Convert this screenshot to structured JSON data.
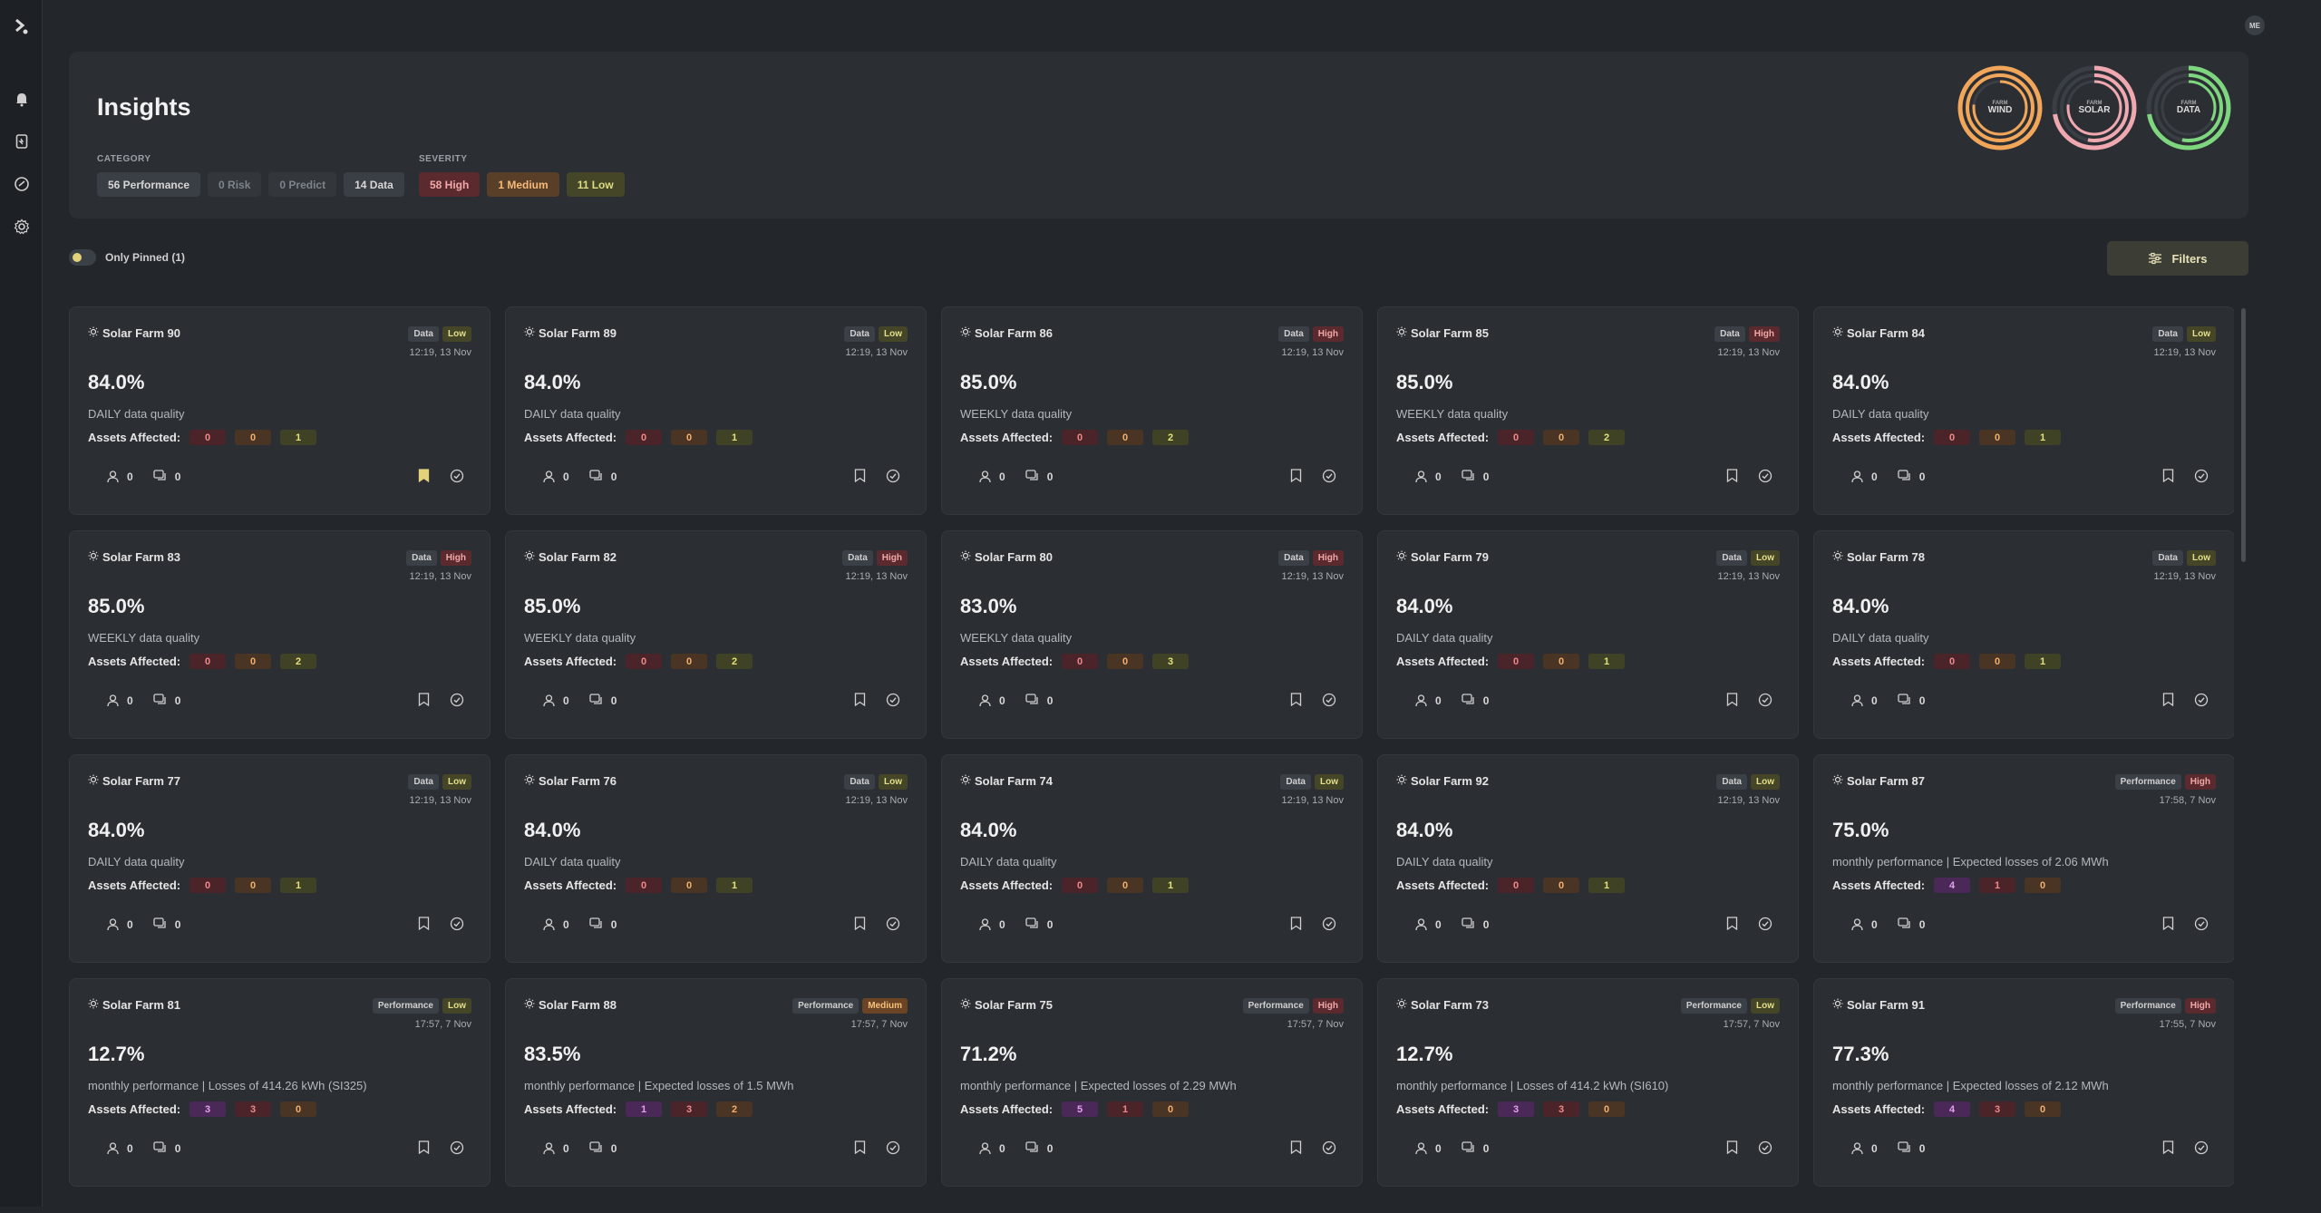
{
  "user": {
    "initials": "ME"
  },
  "page": {
    "title": "Insights"
  },
  "filters": {
    "category_label": "CATEGORY",
    "severity_label": "SEVERITY",
    "category": [
      "56 Performance",
      "0 Risk",
      "0 Predict",
      "14 Data"
    ],
    "severity": [
      "58 High",
      "1 Medium",
      "11 Low"
    ],
    "only_pinned": "Only Pinned (1)",
    "filters_button": "Filters"
  },
  "rings": [
    {
      "small": "FARM",
      "big": "WIND",
      "color": "#f2a65a"
    },
    {
      "small": "FARM",
      "big": "SOLAR",
      "color": "#f0a8b0"
    },
    {
      "small": "FARM",
      "big": "DATA",
      "color": "#7ed67e"
    }
  ],
  "labels": {
    "assets_affected": "Assets Affected:"
  },
  "cards": [
    {
      "name": "Solar Farm 90",
      "category": "Data",
      "severity": "Low",
      "date": "12:19, 13 Nov",
      "value": "84.0%",
      "desc": "DAILY data quality",
      "assets": [
        "0",
        "0",
        "1"
      ],
      "assignees": "0",
      "comments": "0",
      "pinned": true
    },
    {
      "name": "Solar Farm 89",
      "category": "Data",
      "severity": "Low",
      "date": "12:19, 13 Nov",
      "value": "84.0%",
      "desc": "DAILY data quality",
      "assets": [
        "0",
        "0",
        "1"
      ],
      "assignees": "0",
      "comments": "0"
    },
    {
      "name": "Solar Farm 86",
      "category": "Data",
      "severity": "High",
      "date": "12:19, 13 Nov",
      "value": "85.0%",
      "desc": "WEEKLY data quality",
      "assets": [
        "0",
        "0",
        "2"
      ],
      "assignees": "0",
      "comments": "0"
    },
    {
      "name": "Solar Farm 85",
      "category": "Data",
      "severity": "High",
      "date": "12:19, 13 Nov",
      "value": "85.0%",
      "desc": "WEEKLY data quality",
      "assets": [
        "0",
        "0",
        "2"
      ],
      "assignees": "0",
      "comments": "0"
    },
    {
      "name": "Solar Farm 84",
      "category": "Data",
      "severity": "Low",
      "date": "12:19, 13 Nov",
      "value": "84.0%",
      "desc": "DAILY data quality",
      "assets": [
        "0",
        "0",
        "1"
      ],
      "assignees": "0",
      "comments": "0"
    },
    {
      "name": "Solar Farm 83",
      "category": "Data",
      "severity": "High",
      "date": "12:19, 13 Nov",
      "value": "85.0%",
      "desc": "WEEKLY data quality",
      "assets": [
        "0",
        "0",
        "2"
      ],
      "assignees": "0",
      "comments": "0"
    },
    {
      "name": "Solar Farm 82",
      "category": "Data",
      "severity": "High",
      "date": "12:19, 13 Nov",
      "value": "85.0%",
      "desc": "WEEKLY data quality",
      "assets": [
        "0",
        "0",
        "2"
      ],
      "assignees": "0",
      "comments": "0"
    },
    {
      "name": "Solar Farm 80",
      "category": "Data",
      "severity": "High",
      "date": "12:19, 13 Nov",
      "value": "83.0%",
      "desc": "WEEKLY data quality",
      "assets": [
        "0",
        "0",
        "3"
      ],
      "assignees": "0",
      "comments": "0"
    },
    {
      "name": "Solar Farm 79",
      "category": "Data",
      "severity": "Low",
      "date": "12:19, 13 Nov",
      "value": "84.0%",
      "desc": "DAILY data quality",
      "assets": [
        "0",
        "0",
        "1"
      ],
      "assignees": "0",
      "comments": "0"
    },
    {
      "name": "Solar Farm 78",
      "category": "Data",
      "severity": "Low",
      "date": "12:19, 13 Nov",
      "value": "84.0%",
      "desc": "DAILY data quality",
      "assets": [
        "0",
        "0",
        "1"
      ],
      "assignees": "0",
      "comments": "0"
    },
    {
      "name": "Solar Farm 77",
      "category": "Data",
      "severity": "Low",
      "date": "12:19, 13 Nov",
      "value": "84.0%",
      "desc": "DAILY data quality",
      "assets": [
        "0",
        "0",
        "1"
      ],
      "assignees": "0",
      "comments": "0"
    },
    {
      "name": "Solar Farm 76",
      "category": "Data",
      "severity": "Low",
      "date": "12:19, 13 Nov",
      "value": "84.0%",
      "desc": "DAILY data quality",
      "assets": [
        "0",
        "0",
        "1"
      ],
      "assignees": "0",
      "comments": "0"
    },
    {
      "name": "Solar Farm 74",
      "category": "Data",
      "severity": "Low",
      "date": "12:19, 13 Nov",
      "value": "84.0%",
      "desc": "DAILY data quality",
      "assets": [
        "0",
        "0",
        "1"
      ],
      "assignees": "0",
      "comments": "0"
    },
    {
      "name": "Solar Farm 92",
      "category": "Data",
      "severity": "Low",
      "date": "12:19, 13 Nov",
      "value": "84.0%",
      "desc": "DAILY data quality",
      "assets": [
        "0",
        "0",
        "1"
      ],
      "assignees": "0",
      "comments": "0"
    },
    {
      "name": "Solar Farm 87",
      "category": "Performance",
      "severity": "High",
      "date": "17:58, 7 Nov",
      "value": "75.0%",
      "desc": "monthly performance | Expected losses of 2.06 MWh",
      "assets": [
        "4",
        "1",
        "0"
      ],
      "assignees": "0",
      "comments": "0"
    },
    {
      "name": "Solar Farm 81",
      "category": "Performance",
      "severity": "Low",
      "date": "17:57, 7 Nov",
      "value": "12.7%",
      "desc": "monthly performance | Losses of 414.26 kWh (SI325)",
      "assets": [
        "3",
        "3",
        "0"
      ],
      "assignees": "0",
      "comments": "0"
    },
    {
      "name": "Solar Farm 88",
      "category": "Performance",
      "severity": "Medium",
      "date": "17:57, 7 Nov",
      "value": "83.5%",
      "desc": "monthly performance | Expected losses of 1.5 MWh",
      "assets": [
        "1",
        "3",
        "2"
      ],
      "assignees": "0",
      "comments": "0"
    },
    {
      "name": "Solar Farm 75",
      "category": "Performance",
      "severity": "High",
      "date": "17:57, 7 Nov",
      "value": "71.2%",
      "desc": "monthly performance | Expected losses of 2.29 MWh",
      "assets": [
        "5",
        "1",
        "0"
      ],
      "assignees": "0",
      "comments": "0"
    },
    {
      "name": "Solar Farm 73",
      "category": "Performance",
      "severity": "Low",
      "date": "17:57, 7 Nov",
      "value": "12.7%",
      "desc": "monthly performance | Losses of 414.2 kWh (SI610)",
      "assets": [
        "3",
        "3",
        "0"
      ],
      "assignees": "0",
      "comments": "0"
    },
    {
      "name": "Solar Farm 91",
      "category": "Performance",
      "severity": "High",
      "date": "17:55, 7 Nov",
      "value": "77.3%",
      "desc": "monthly performance | Expected losses of 2.12 MWh",
      "assets": [
        "4",
        "3",
        "0"
      ],
      "assignees": "0",
      "comments": "0"
    }
  ]
}
